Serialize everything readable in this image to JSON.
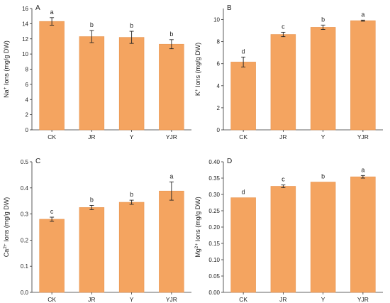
{
  "colors": {
    "bar": "#F4A460",
    "bar_stroke": "#E89550",
    "axis": "#333333",
    "text": "#222222"
  },
  "chart_data": [
    {
      "type": "bar",
      "panel": "A",
      "categories": [
        "CK",
        "JR",
        "Y",
        "YJR"
      ],
      "values": [
        14.3,
        12.3,
        12.2,
        11.3
      ],
      "errors": [
        0.5,
        0.8,
        0.8,
        0.6
      ],
      "significance": [
        "a",
        "b",
        "b",
        "b"
      ],
      "ylabel_main": "Na",
      "ylabel_sup": "+",
      "ylabel_rest": " Ions (mg/g DW)",
      "ylim": [
        0,
        16
      ],
      "yticks": [
        0,
        2,
        4,
        6,
        8,
        10,
        12,
        14,
        16
      ],
      "ytick_labels": [
        "0",
        "2",
        "4",
        "6",
        "8",
        "10",
        "12",
        "14",
        "16"
      ]
    },
    {
      "type": "bar",
      "panel": "B",
      "categories": [
        "CK",
        "JR",
        "Y",
        "YJR"
      ],
      "values": [
        6.15,
        8.65,
        9.3,
        9.9
      ],
      "errors": [
        0.45,
        0.2,
        0.2,
        0.05
      ],
      "significance": [
        "d",
        "c",
        "b",
        "a"
      ],
      "ylabel_main": "K",
      "ylabel_sup": "+",
      "ylabel_rest": " Ions (mg/g DW)",
      "ylim": [
        0,
        11
      ],
      "yticks": [
        0,
        2,
        4,
        6,
        8,
        10
      ],
      "ytick_labels": [
        "0",
        "2",
        "4",
        "6",
        "8",
        "10"
      ]
    },
    {
      "type": "bar",
      "panel": "C",
      "categories": [
        "CK",
        "JR",
        "Y",
        "YJR"
      ],
      "values": [
        0.28,
        0.325,
        0.345,
        0.388
      ],
      "errors": [
        0.008,
        0.008,
        0.008,
        0.035
      ],
      "significance": [
        "c",
        "b",
        "b",
        "a"
      ],
      "ylabel_main": "Ca",
      "ylabel_sup": "2+",
      "ylabel_rest": " Ions (mg/g DW)",
      "ylim": [
        0,
        0.5
      ],
      "yticks": [
        0,
        0.1,
        0.2,
        0.3,
        0.4,
        0.5
      ],
      "ytick_labels": [
        "0.0",
        "0.1",
        "0.2",
        "0.3",
        "0.4",
        "0.5"
      ]
    },
    {
      "type": "bar",
      "panel": "D",
      "categories": [
        "CK",
        "JR",
        "Y",
        "YJR"
      ],
      "values": [
        0.29,
        0.325,
        0.338,
        0.354
      ],
      "errors": [
        0.0,
        0.004,
        0.0,
        0.004
      ],
      "significance": [
        "d",
        "c",
        "b",
        "a"
      ],
      "ylabel_main": "Mg",
      "ylabel_sup": "2+",
      "ylabel_rest": " Ions (mg/g DW)",
      "ylim": [
        0,
        0.4
      ],
      "yticks": [
        0,
        0.05,
        0.1,
        0.15,
        0.2,
        0.25,
        0.3,
        0.35,
        0.4
      ],
      "ytick_labels": [
        "0.00",
        "0.05",
        "0.10",
        "0.15",
        "0.20",
        "0.25",
        "0.30",
        "0.35",
        "0.40"
      ]
    }
  ]
}
